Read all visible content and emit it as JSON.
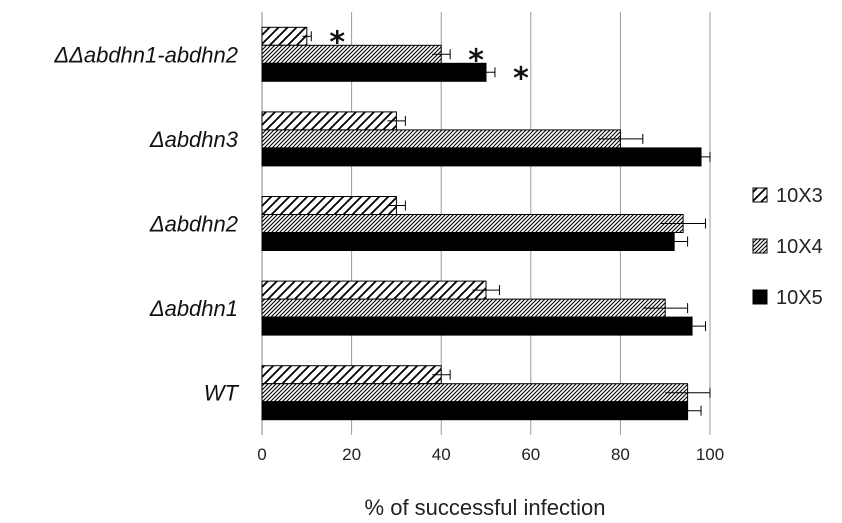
{
  "chart_data": {
    "type": "bar",
    "orientation": "horizontal",
    "categories": [
      "ΔΔabdhn1-abdhn2",
      "Δabdhn3",
      "Δabdhn2",
      "Δabdhn1",
      "WT"
    ],
    "series": [
      {
        "name": "10X3",
        "values": [
          10,
          30,
          30,
          50,
          40
        ],
        "errors": [
          1,
          2,
          2,
          3,
          2
        ],
        "pattern": "diagonal-wide"
      },
      {
        "name": "10X4",
        "values": [
          40,
          80,
          94,
          90,
          95
        ],
        "errors": [
          2,
          5,
          5,
          5,
          5
        ],
        "pattern": "diagonal-dense"
      },
      {
        "name": "10X5",
        "values": [
          50,
          98,
          92,
          96,
          95
        ],
        "errors": [
          2,
          2,
          3,
          3,
          3
        ],
        "pattern": "solid"
      }
    ],
    "annotations": [
      {
        "text": "*",
        "category": "ΔΔabdhn1-abdhn2",
        "series": "10X3"
      },
      {
        "text": "*",
        "category": "ΔΔabdhn1-abdhn2",
        "series": "10X4"
      },
      {
        "text": "*",
        "category": "ΔΔabdhn1-abdhn2",
        "series": "10X5"
      }
    ],
    "xlabel": "% of successful infection",
    "xlim": [
      0,
      100
    ],
    "xticks": [
      0,
      20,
      40,
      60,
      80,
      100
    ],
    "grid": true,
    "legend_position": "right",
    "colors": {
      "bar": "#000000",
      "grid": "#999999",
      "background": "#ffffff"
    }
  }
}
